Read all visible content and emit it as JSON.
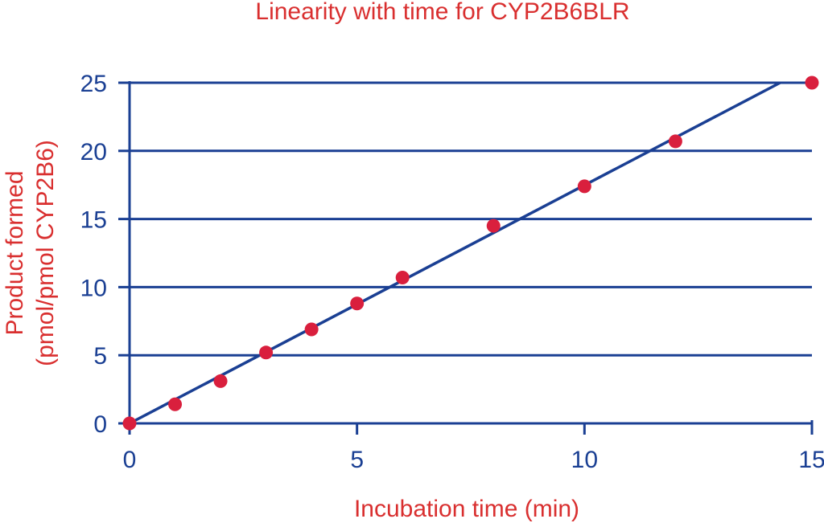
{
  "chart_data": {
    "type": "scatter",
    "title": "Linearity with time for CYP2B6BLR",
    "xlabel": "Incubation time (min)",
    "ylabel_lines": [
      "Product formed",
      "(pmol/pmol CYP2B6)"
    ],
    "xlim": [
      0,
      15
    ],
    "ylim": [
      0,
      25
    ],
    "x_ticks": [
      0,
      5,
      10,
      15
    ],
    "y_ticks": [
      0,
      5,
      10,
      15,
      20,
      25
    ],
    "grid": "horizontal",
    "legend": "none",
    "colors": {
      "points": "#d91f3d",
      "fit_line": "#1a3f93",
      "axes": "#1a3f93",
      "labels": "#d92f2f"
    },
    "series": [
      {
        "points": [
          {
            "x": 0,
            "y": 0
          },
          {
            "x": 1,
            "y": 1.4
          },
          {
            "x": 2,
            "y": 3.1
          },
          {
            "x": 3,
            "y": 5.2
          },
          {
            "x": 4,
            "y": 6.9
          },
          {
            "x": 5,
            "y": 8.8
          },
          {
            "x": 6,
            "y": 10.7
          },
          {
            "x": 8,
            "y": 14.5
          },
          {
            "x": 10,
            "y": 17.4
          },
          {
            "x": 12,
            "y": 20.7
          },
          {
            "x": 15,
            "y": 25.0
          }
        ]
      }
    ],
    "fit_line": {
      "x_start": 0,
      "y_start": 0,
      "x_end": 14.3,
      "y_end": 25
    }
  }
}
